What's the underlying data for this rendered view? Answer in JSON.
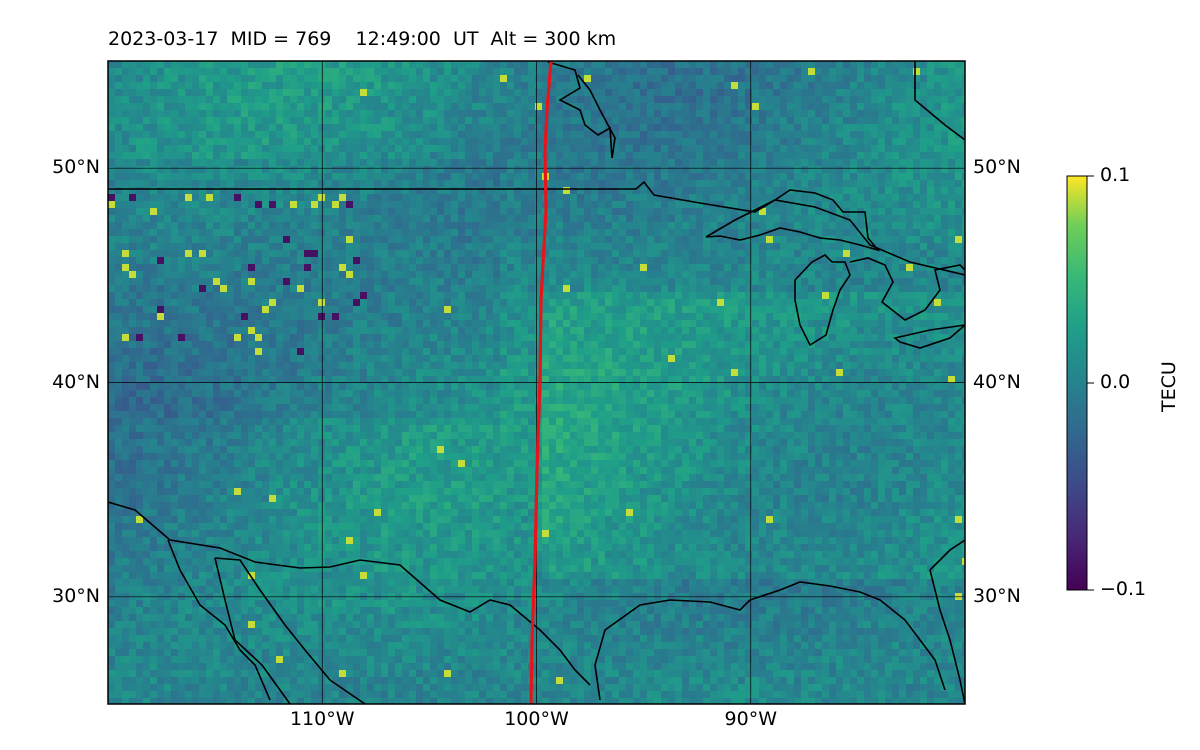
{
  "title": "2023-03-17  MID = 769    12:49:00  UT  Alt = 300 km",
  "map": {
    "lon_range": [
      -120,
      -80
    ],
    "lat_range": [
      25,
      55
    ],
    "lat_ticks": [
      {
        "value": 50,
        "label": "50°N"
      },
      {
        "value": 40,
        "label": "40°N"
      },
      {
        "value": 30,
        "label": "30°N"
      }
    ],
    "lon_ticks": [
      {
        "value": -110,
        "label": "110°W"
      },
      {
        "value": -100,
        "label": "100°W"
      },
      {
        "value": -90,
        "label": "90°W"
      }
    ],
    "gridlines": true,
    "track_color": "#e8141c",
    "coastline_color": "#000000"
  },
  "colorbar": {
    "label": "TECU",
    "min": -0.1,
    "max": 0.1,
    "ticks": [
      {
        "value": 0.1,
        "label": "0.1"
      },
      {
        "value": 0.0,
        "label": "0.0"
      },
      {
        "value": -0.1,
        "label": "−0.1"
      }
    ],
    "colormap": "viridis"
  }
}
